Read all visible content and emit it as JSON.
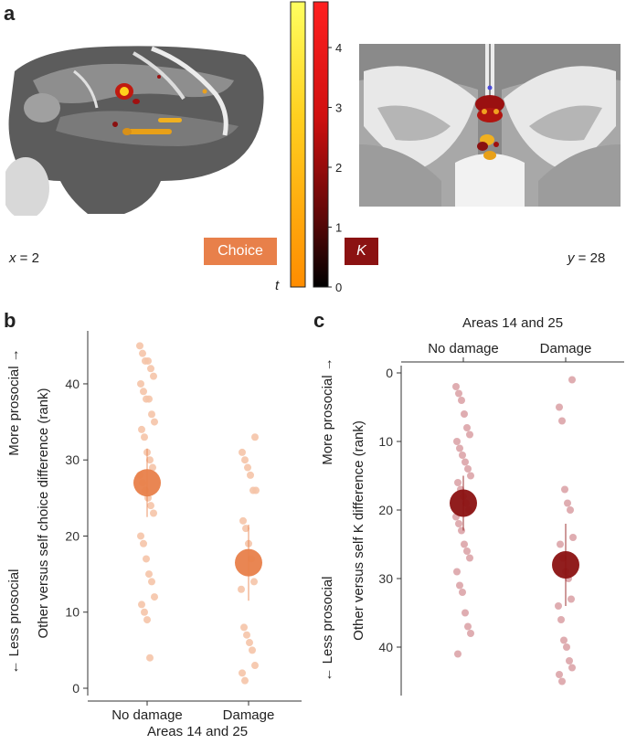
{
  "panel_a": {
    "letter": "a",
    "sagittal_coord_var": "x",
    "sagittal_coord_val": "= 2",
    "coronal_coord_var": "y",
    "coronal_coord_val": "= 28",
    "legend_choice": "Choice",
    "legend_k": "K",
    "colorbar_t_label": "t",
    "colorbar_ticks": [
      "4",
      "3",
      "2",
      "1",
      "0"
    ],
    "colors": {
      "choice": "#e8804a",
      "k": "#8b1212"
    }
  },
  "chart_data": [
    {
      "panel": "b",
      "type": "scatter",
      "ylabel_main": "Other versus self choice difference (rank)",
      "ylabel_up": "More prosocial →",
      "ylabel_down": "← Less prosocial",
      "xlabel": "Areas 14 and 25",
      "categories": [
        "No damage",
        "Damage"
      ],
      "ylim": [
        0,
        46
      ],
      "yticks": [
        "0",
        "10",
        "20",
        "30",
        "40"
      ],
      "y_reversed": false,
      "dot_color": "#f5c4a8",
      "mean_color": "#e8804a",
      "means": [
        27,
        16.5
      ],
      "se": [
        [
          22.5,
          31.5
        ],
        [
          11.5,
          21.5
        ]
      ],
      "points": [
        [
          45,
          44,
          43,
          43,
          42,
          41,
          40,
          39,
          38,
          38,
          36,
          35,
          34,
          33,
          31,
          30,
          29,
          28,
          27,
          26,
          25,
          24,
          23,
          20,
          19,
          17,
          15,
          14,
          12,
          11,
          10,
          9,
          4
        ],
        [
          33,
          31,
          30,
          29,
          28,
          26,
          26,
          22,
          21,
          19,
          17,
          14,
          13,
          8,
          7,
          6,
          5,
          3,
          2,
          1
        ]
      ]
    },
    {
      "panel": "c",
      "type": "scatter",
      "ylabel_main": "Other versus self K difference (rank)",
      "ylabel_up": "More prosocial →",
      "ylabel_down": "← Less prosocial",
      "xlabel": "Areas 14 and 25",
      "categories": [
        "No damage",
        "Damage"
      ],
      "ylim": [
        0,
        46
      ],
      "yticks": [
        "0",
        "10",
        "20",
        "30",
        "40"
      ],
      "y_reversed": true,
      "dot_color": "#dca4a8",
      "mean_color": "#8b1212",
      "means": [
        19,
        28
      ],
      "se": [
        [
          15,
          23
        ],
        [
          22,
          34
        ]
      ],
      "points": [
        [
          2,
          3,
          4,
          6,
          8,
          9,
          10,
          11,
          12,
          13,
          14,
          15,
          16,
          17,
          18,
          19,
          20,
          21,
          22,
          23,
          25,
          26,
          27,
          29,
          31,
          32,
          35,
          37,
          38,
          41
        ],
        [
          1,
          5,
          7,
          17,
          19,
          20,
          24,
          25,
          27,
          29,
          30,
          33,
          34,
          36,
          39,
          40,
          42,
          43,
          44,
          45
        ]
      ]
    }
  ],
  "panel_b_letter": "b",
  "panel_c_letter": "c"
}
